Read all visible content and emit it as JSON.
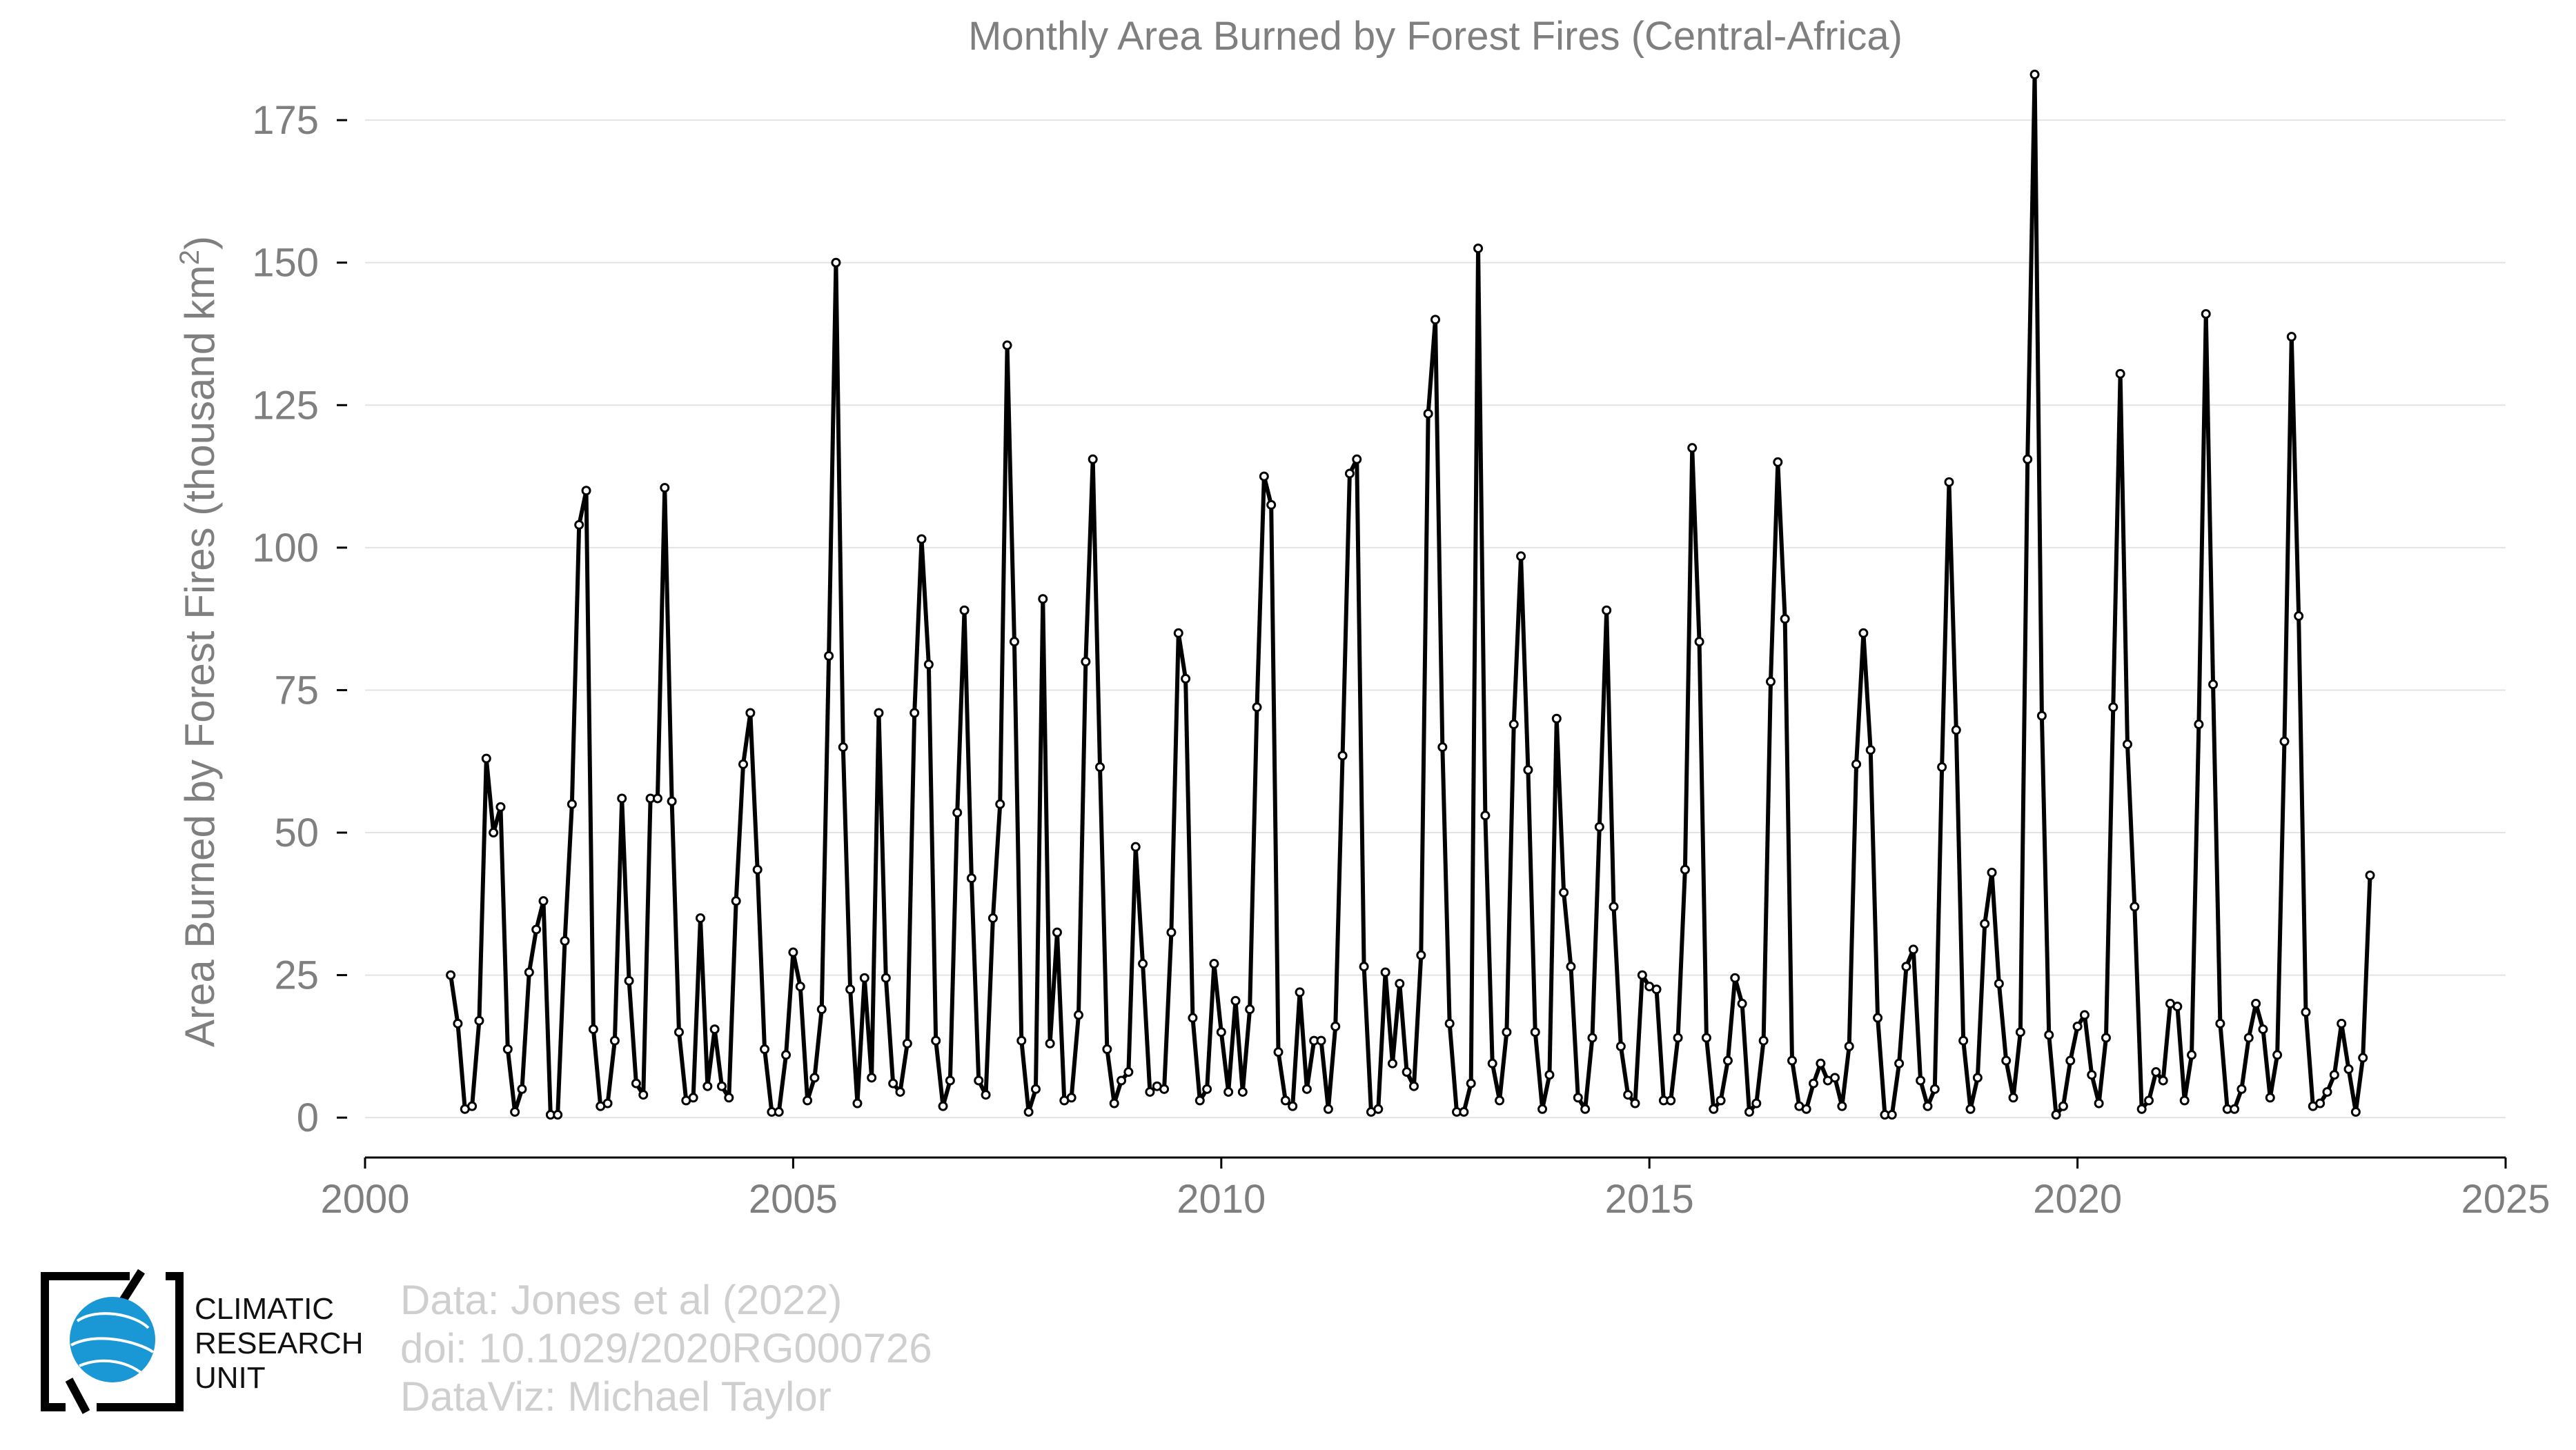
{
  "chart_data": {
    "type": "line",
    "title": "Monthly Area Burned by Forest Fires (Central-Africa)",
    "ylabel": "Area Burned by Forest Fires (thousand km",
    "ylabel_superscript": "2",
    "ylabel_suffix": ")",
    "xlim": [
      2000,
      2025
    ],
    "ylim": [
      -7,
      187
    ],
    "x_ticks": [
      2000,
      2005,
      2010,
      2015,
      2020,
      2025
    ],
    "y_ticks": [
      0,
      25,
      50,
      75,
      100,
      125,
      150,
      175
    ],
    "grid": true,
    "legend": "none",
    "line_color": "#000000",
    "marker_fill": "#ffffff",
    "start_year": 2001,
    "start_month": 1,
    "series": [
      {
        "values": [
          25,
          16.5,
          1.5,
          2,
          17,
          63,
          50,
          54.5,
          12,
          1,
          5,
          25.5,
          33,
          38,
          0.5,
          0.5,
          31,
          55,
          104,
          110,
          15.5,
          2,
          2.5,
          13.5,
          56,
          24,
          6,
          4,
          56,
          56,
          110.5,
          55.5,
          15,
          3,
          3.5,
          35,
          5.5,
          15.5,
          5.5,
          3.5,
          38,
          62,
          71,
          43.5,
          12,
          1,
          1,
          11,
          29,
          23,
          3,
          7,
          19,
          81,
          150,
          65,
          22.5,
          2.5,
          24.5,
          7,
          71,
          24.5,
          6,
          4.5,
          13,
          71,
          101.5,
          79.5,
          13.5,
          2,
          6.5,
          53.5,
          89,
          42,
          6.5,
          4,
          35,
          55,
          135.5,
          83.5,
          13.5,
          1,
          5,
          91,
          13,
          32.5,
          3,
          3.5,
          18,
          80,
          115.5,
          61.5,
          12,
          2.5,
          6.5,
          8,
          47.5,
          27,
          4.5,
          5.5,
          5,
          32.5,
          85,
          77,
          17.5,
          3,
          5,
          27,
          15,
          4.5,
          20.5,
          4.5,
          19,
          72,
          112.5,
          107.5,
          11.5,
          3,
          2,
          22,
          5,
          13.5,
          13.5,
          1.5,
          16,
          63.5,
          113,
          115.5,
          26.5,
          1,
          1.5,
          25.5,
          9.5,
          23.5,
          8,
          5.5,
          28.5,
          123.5,
          140,
          65,
          16.5,
          1,
          1,
          6,
          152.5,
          53,
          9.5,
          3,
          15,
          69,
          98.5,
          61,
          15,
          1.5,
          7.5,
          70,
          39.5,
          26.5,
          3.5,
          1.5,
          14,
          51,
          89,
          37,
          12.5,
          4,
          2.5,
          25,
          23,
          22.5,
          3,
          3,
          14,
          43.5,
          117.5,
          83.5,
          14,
          1.5,
          3,
          10,
          24.5,
          20,
          1,
          2.5,
          13.5,
          76.5,
          115,
          87.5,
          10,
          2,
          1.5,
          6,
          9.5,
          6.5,
          7,
          2,
          12.5,
          62,
          85,
          64.5,
          17.5,
          0.5,
          0.5,
          9.5,
          26.5,
          29.5,
          6.5,
          2,
          5,
          61.5,
          111.5,
          68,
          13.5,
          1.5,
          7,
          34,
          43,
          23.5,
          10,
          3.5,
          15,
          115.5,
          183,
          70.5,
          14.5,
          0.5,
          2,
          10,
          16,
          18,
          7.5,
          2.5,
          14,
          72,
          130.5,
          65.5,
          37,
          1.5,
          3,
          8,
          6.5,
          20,
          19.5,
          3,
          11,
          69,
          141,
          76,
          16.5,
          1.5,
          1.5,
          5,
          14,
          20,
          15.5,
          3.5,
          11,
          66,
          137,
          88,
          18.5,
          2,
          2.5,
          4.5,
          7.5,
          16.5,
          8.5,
          1,
          10.5,
          42.5
        ]
      }
    ]
  },
  "credits": {
    "line1": "Data: Jones et al (2022)",
    "line2": "doi: 10.1029/2020RG000726",
    "line3": "DataViz: Michael Taylor"
  },
  "logo": {
    "line1": "CLIMATIC",
    "line2": "RESEARCH",
    "line3": "UNIT",
    "globe_color": "#1a98d5"
  }
}
